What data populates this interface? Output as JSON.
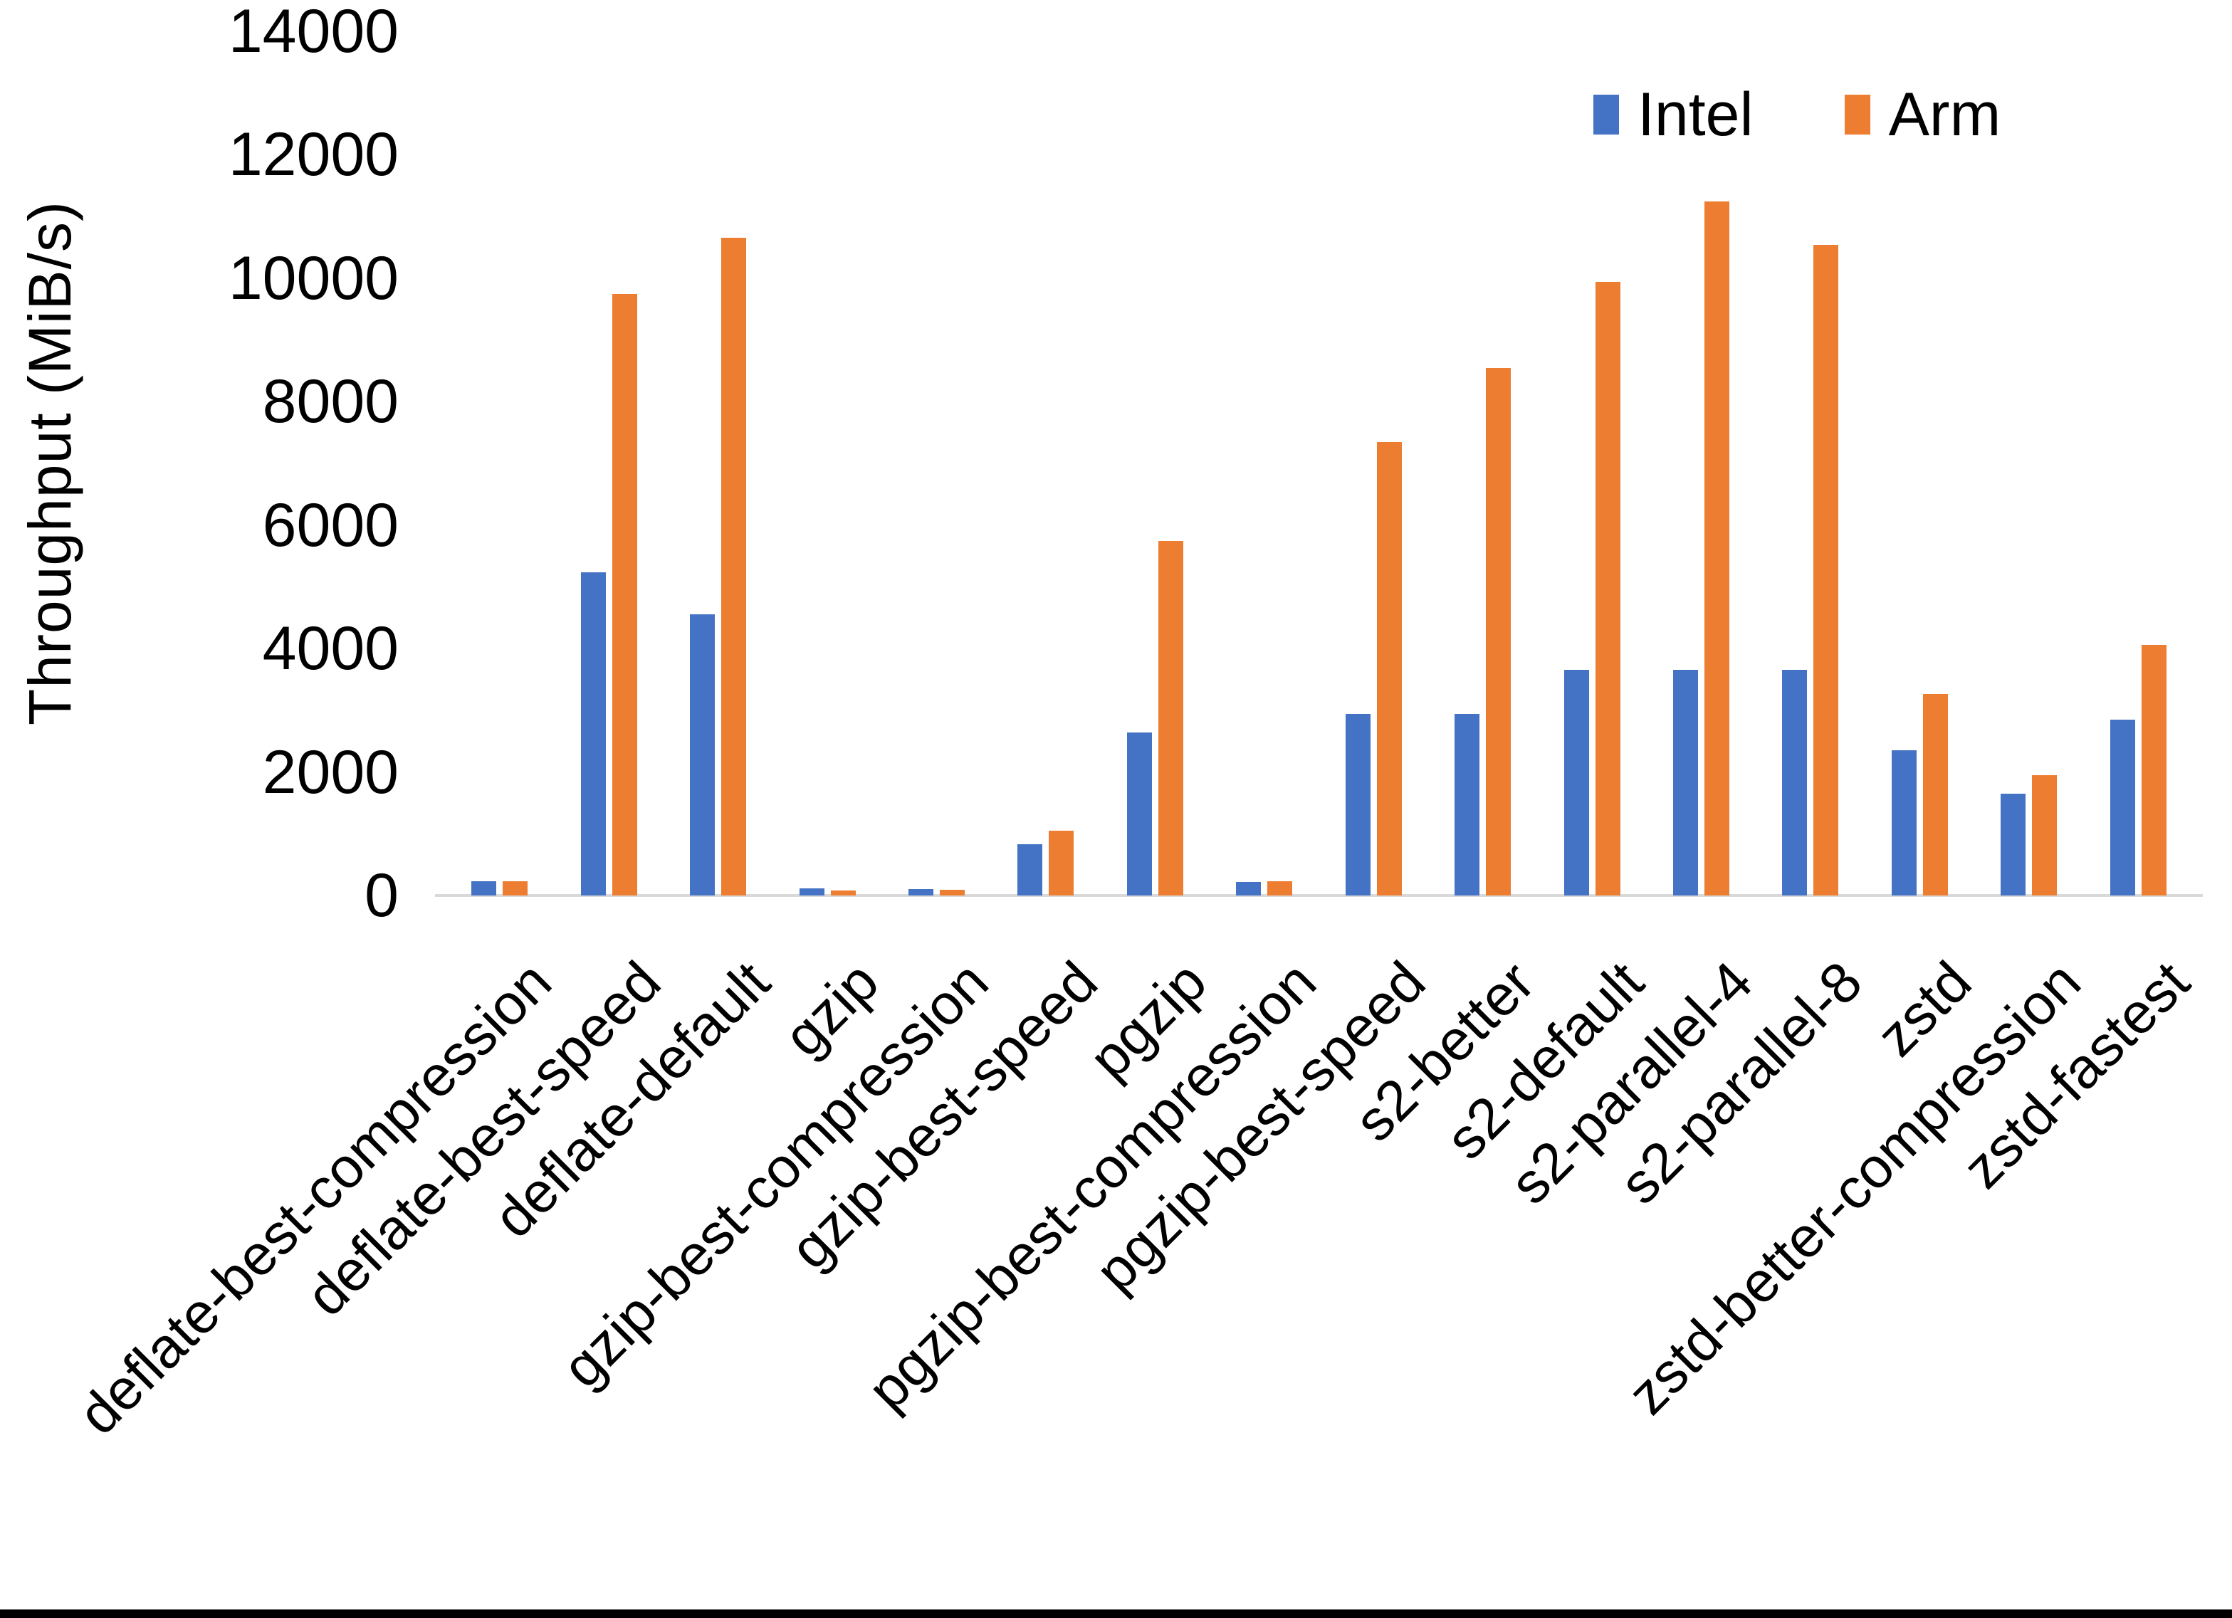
{
  "chart_data": {
    "type": "bar",
    "title": "",
    "ylabel": "Throughput (MiB/s)",
    "xlabel": "",
    "ylim": [
      0,
      14000
    ],
    "yticks": [
      0,
      2000,
      4000,
      6000,
      8000,
      10000,
      12000,
      14000
    ],
    "grid": false,
    "legend_position": "top-right",
    "axis_line_color": "#d9d9d9",
    "background": "#ffffff",
    "categories": [
      "deflate-best-compression",
      "deflate-best-speed",
      "deflate-default",
      "gzip",
      "gzip-best-compression",
      "gzip-best-speed",
      "pgzip",
      "pgzip-best-compression",
      "pgzip-best-speed",
      "s2-better",
      "s2-default",
      "s2-parallel-4",
      "s2-parallel-8",
      "zstd",
      "zstd-better-compression",
      "zstd-fastest"
    ],
    "series": [
      {
        "name": "Intel",
        "color": "#4472C4",
        "values": [
          230,
          5230,
          4550,
          115,
          105,
          835,
          2640,
          220,
          2940,
          2940,
          3650,
          3650,
          3650,
          2350,
          1645,
          2850
        ]
      },
      {
        "name": "Arm",
        "color": "#ED7D31",
        "values": [
          225,
          9750,
          10650,
          85,
          95,
          1055,
          5745,
          230,
          7350,
          8545,
          9940,
          11240,
          10540,
          3260,
          1945,
          4060
        ]
      }
    ]
  }
}
